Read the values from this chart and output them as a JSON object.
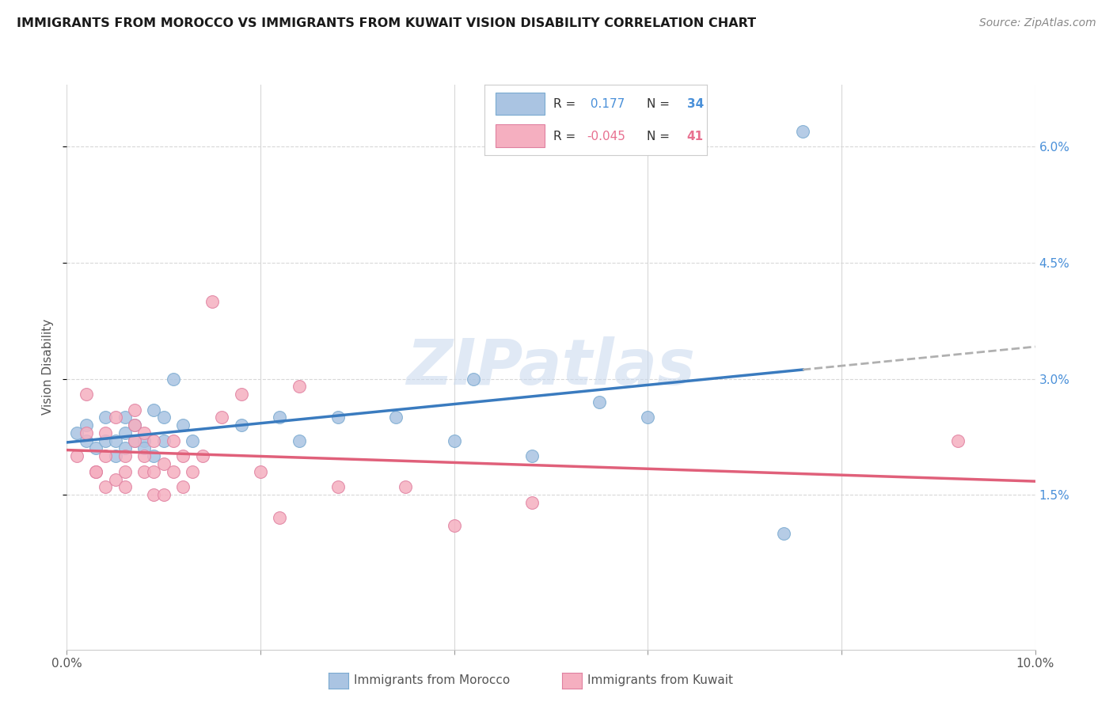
{
  "title": "IMMIGRANTS FROM MOROCCO VS IMMIGRANTS FROM KUWAIT VISION DISABILITY CORRELATION CHART",
  "source": "Source: ZipAtlas.com",
  "ylabel": "Vision Disability",
  "xlim": [
    0.0,
    0.1
  ],
  "ylim": [
    -0.005,
    0.068
  ],
  "xticks": [
    0.0,
    0.02,
    0.04,
    0.06,
    0.08,
    0.1
  ],
  "xticklabels": [
    "0.0%",
    "",
    "",
    "",
    "",
    "10.0%"
  ],
  "yticks_right": [
    0.015,
    0.03,
    0.045,
    0.06
  ],
  "yticklabels_right": [
    "1.5%",
    "3.0%",
    "4.5%",
    "6.0%"
  ],
  "morocco_color": "#aac4e2",
  "morocco_edge": "#7aaad0",
  "kuwait_color": "#f5afc0",
  "kuwait_edge": "#e080a0",
  "morocco_line_color": "#3a7bbf",
  "kuwait_line_color": "#e0607a",
  "dash_color": "#b0b0b0",
  "morocco_R": 0.177,
  "morocco_N": 34,
  "kuwait_R": -0.045,
  "kuwait_N": 41,
  "r_text_color": "#4a90d9",
  "n_text_color": "#4a90d9",
  "r_k_text_color": "#e87090",
  "n_k_text_color": "#e87090",
  "background_color": "#ffffff",
  "grid_color": "#d8d8d8",
  "watermark": "ZIPatlas",
  "morocco_scatter_x": [
    0.001,
    0.002,
    0.002,
    0.003,
    0.004,
    0.004,
    0.005,
    0.005,
    0.006,
    0.006,
    0.006,
    0.007,
    0.007,
    0.008,
    0.008,
    0.009,
    0.009,
    0.01,
    0.01,
    0.011,
    0.012,
    0.013,
    0.018,
    0.022,
    0.024,
    0.028,
    0.034,
    0.04,
    0.042,
    0.048,
    0.055,
    0.06,
    0.074,
    0.076
  ],
  "morocco_scatter_y": [
    0.023,
    0.022,
    0.024,
    0.021,
    0.022,
    0.025,
    0.022,
    0.02,
    0.023,
    0.021,
    0.025,
    0.022,
    0.024,
    0.022,
    0.021,
    0.02,
    0.026,
    0.022,
    0.025,
    0.03,
    0.024,
    0.022,
    0.024,
    0.025,
    0.022,
    0.025,
    0.025,
    0.022,
    0.03,
    0.02,
    0.027,
    0.025,
    0.01,
    0.062
  ],
  "kuwait_scatter_x": [
    0.001,
    0.002,
    0.002,
    0.003,
    0.003,
    0.004,
    0.004,
    0.004,
    0.005,
    0.005,
    0.006,
    0.006,
    0.006,
    0.007,
    0.007,
    0.007,
    0.008,
    0.008,
    0.008,
    0.009,
    0.009,
    0.009,
    0.01,
    0.01,
    0.011,
    0.011,
    0.012,
    0.012,
    0.013,
    0.014,
    0.015,
    0.016,
    0.018,
    0.02,
    0.022,
    0.024,
    0.028,
    0.035,
    0.04,
    0.048,
    0.092
  ],
  "kuwait_scatter_y": [
    0.02,
    0.023,
    0.028,
    0.018,
    0.018,
    0.016,
    0.02,
    0.023,
    0.017,
    0.025,
    0.016,
    0.018,
    0.02,
    0.022,
    0.024,
    0.026,
    0.018,
    0.02,
    0.023,
    0.015,
    0.018,
    0.022,
    0.015,
    0.019,
    0.018,
    0.022,
    0.016,
    0.02,
    0.018,
    0.02,
    0.04,
    0.025,
    0.028,
    0.018,
    0.012,
    0.029,
    0.016,
    0.016,
    0.011,
    0.014,
    0.022
  ]
}
